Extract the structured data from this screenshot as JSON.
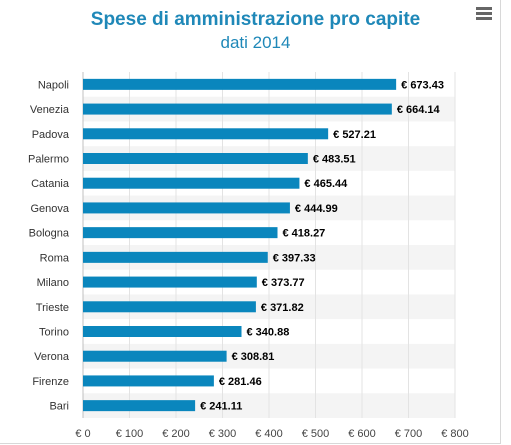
{
  "title": "Spese di amministrazione pro capite",
  "subtitle": "dati 2014",
  "menu_icon": "hamburger-menu-icon",
  "colors": {
    "bar": "#0a86bd",
    "title": "#1f88b8",
    "band": "#f4f4f4"
  },
  "chart_data": {
    "type": "bar",
    "orientation": "horizontal",
    "categories": [
      "Napoli",
      "Venezia",
      "Padova",
      "Palermo",
      "Catania",
      "Genova",
      "Bologna",
      "Roma",
      "Milano",
      "Trieste",
      "Torino",
      "Verona",
      "Firenze",
      "Bari"
    ],
    "values": [
      673.43,
      664.14,
      527.21,
      483.51,
      465.44,
      444.99,
      418.27,
      397.33,
      373.77,
      371.82,
      340.88,
      308.81,
      281.46,
      241.11
    ],
    "value_labels": [
      "€ 673.43",
      "€ 664.14",
      "€ 527.21",
      "€ 483.51",
      "€ 465.44",
      "€ 444.99",
      "€ 418.27",
      "€ 397.33",
      "€ 373.77",
      "€ 371.82",
      "€ 340.88",
      "€ 308.81",
      "€ 281.46",
      "€ 241.11"
    ],
    "xlim": [
      0,
      800
    ],
    "ticks": [
      0,
      100,
      200,
      300,
      400,
      500,
      600,
      700,
      800
    ],
    "tick_labels": [
      "€ 0",
      "€ 100",
      "€ 200",
      "€ 300",
      "€ 400",
      "€ 500",
      "€ 600",
      "€ 700",
      "€ 800"
    ],
    "grid": true,
    "legend": "none"
  }
}
